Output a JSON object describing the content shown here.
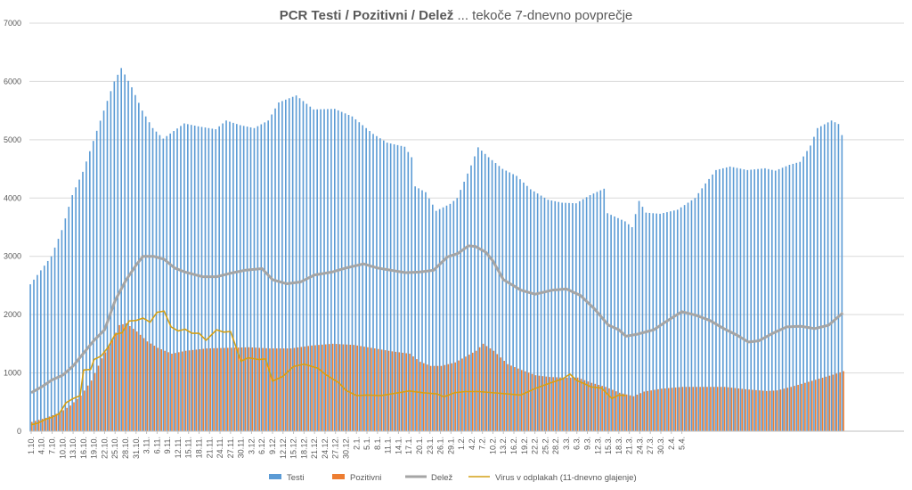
{
  "chart_data": {
    "type": "bar",
    "title_main": "PCR Testi / Pozitivni / Delež",
    "title_rest": " ... tekoče 7-dnevno povprečje",
    "ylim": [
      0,
      7000
    ],
    "yticks": [
      "0",
      "1000",
      "2000",
      "3000",
      "4000",
      "5000",
      "6000",
      "7000"
    ],
    "grid": "horizontal",
    "legend_position": "bottom",
    "xtick_labels": [
      "1.10.",
      "4.10.",
      "7.10.",
      "10.10.",
      "13.10.",
      "16.10.",
      "19.10.",
      "22.10.",
      "25.10.",
      "28.10.",
      "31.10.",
      "3.11.",
      "6.11.",
      "9.11.",
      "12.11.",
      "15.11.",
      "18.11.",
      "21.11.",
      "24.11.",
      "27.11.",
      "30.11.",
      "3.12.",
      "6.12.",
      "9.12.",
      "12.12.",
      "15.12.",
      "18.12.",
      "21.12.",
      "24.12.",
      "27.12.",
      "30.12.",
      "2.1.",
      "5.1.",
      "8.1.",
      "11.1.",
      "14.1.",
      "17.1.",
      "20.1.",
      "23.1.",
      "26.1.",
      "29.1.",
      "1.2.",
      "4.2.",
      "7.2.",
      "10.2.",
      "13.2.",
      "16.2.",
      "19.2.",
      "22.2.",
      "25.2.",
      "28.2.",
      "3.3.",
      "6.3.",
      "9.3.",
      "12.3.",
      "15.3.",
      "18.3.",
      "21.3.",
      "24.3.",
      "27.3.",
      "30.3.",
      "2.4.",
      "5.4."
    ],
    "series": [
      {
        "name": "Testi",
        "color": "#5B9BD5",
        "type": "bar",
        "keys": [
          [
            0,
            2520
          ],
          [
            6,
            3000
          ],
          [
            9,
            3450
          ],
          [
            12,
            4050
          ],
          [
            15,
            4450
          ],
          [
            18,
            4980
          ],
          [
            21,
            5500
          ],
          [
            24,
            6000
          ],
          [
            26,
            6230
          ],
          [
            29,
            5900
          ],
          [
            32,
            5500
          ],
          [
            35,
            5200
          ],
          [
            38,
            5020
          ],
          [
            41,
            5150
          ],
          [
            44,
            5280
          ],
          [
            48,
            5230
          ],
          [
            53,
            5180
          ],
          [
            56,
            5330
          ],
          [
            60,
            5250
          ],
          [
            64,
            5200
          ],
          [
            68,
            5330
          ],
          [
            71,
            5640
          ],
          [
            76,
            5760
          ],
          [
            81,
            5520
          ],
          [
            87,
            5530
          ],
          [
            92,
            5400
          ],
          [
            98,
            5100
          ],
          [
            102,
            4950
          ],
          [
            107,
            4880
          ],
          [
            109,
            4700
          ],
          [
            110,
            4200
          ],
          [
            113,
            4100
          ],
          [
            116,
            3780
          ],
          [
            120,
            3900
          ],
          [
            122,
            4000
          ],
          [
            126,
            4560
          ],
          [
            128,
            4870
          ],
          [
            131,
            4700
          ],
          [
            135,
            4500
          ],
          [
            139,
            4380
          ],
          [
            143,
            4150
          ],
          [
            148,
            3970
          ],
          [
            152,
            3920
          ],
          [
            156,
            3910
          ],
          [
            160,
            4050
          ],
          [
            164,
            4160
          ],
          [
            165,
            3740
          ],
          [
            170,
            3600
          ],
          [
            172,
            3500
          ],
          [
            174,
            3950
          ],
          [
            176,
            3750
          ],
          [
            180,
            3730
          ],
          [
            185,
            3800
          ],
          [
            190,
            4000
          ],
          [
            193,
            4250
          ],
          [
            196,
            4480
          ],
          [
            200,
            4540
          ],
          [
            205,
            4480
          ],
          [
            210,
            4510
          ],
          [
            213,
            4470
          ],
          [
            217,
            4570
          ],
          [
            220,
            4620
          ],
          [
            223,
            4900
          ],
          [
            225,
            5200
          ],
          [
            229,
            5330
          ],
          [
            231,
            5270
          ],
          [
            232,
            5080
          ]
        ]
      },
      {
        "name": "Pozitivni",
        "color": "#ED7D31",
        "type": "bar",
        "keys": [
          [
            0,
            160
          ],
          [
            4,
            230
          ],
          [
            8,
            320
          ],
          [
            11,
            440
          ],
          [
            14,
            610
          ],
          [
            17,
            870
          ],
          [
            20,
            1250
          ],
          [
            23,
            1560
          ],
          [
            25,
            1820
          ],
          [
            27,
            1850
          ],
          [
            30,
            1710
          ],
          [
            33,
            1540
          ],
          [
            36,
            1430
          ],
          [
            40,
            1330
          ],
          [
            44,
            1380
          ],
          [
            50,
            1420
          ],
          [
            56,
            1430
          ],
          [
            62,
            1440
          ],
          [
            68,
            1420
          ],
          [
            74,
            1420
          ],
          [
            80,
            1470
          ],
          [
            86,
            1500
          ],
          [
            92,
            1480
          ],
          [
            98,
            1420
          ],
          [
            103,
            1370
          ],
          [
            108,
            1330
          ],
          [
            111,
            1190
          ],
          [
            114,
            1120
          ],
          [
            117,
            1120
          ],
          [
            121,
            1180
          ],
          [
            124,
            1280
          ],
          [
            127,
            1380
          ],
          [
            129,
            1500
          ],
          [
            132,
            1380
          ],
          [
            136,
            1150
          ],
          [
            140,
            1050
          ],
          [
            144,
            960
          ],
          [
            148,
            930
          ],
          [
            152,
            920
          ],
          [
            156,
            920
          ],
          [
            160,
            830
          ],
          [
            164,
            760
          ],
          [
            168,
            660
          ],
          [
            172,
            600
          ],
          [
            175,
            680
          ],
          [
            180,
            730
          ],
          [
            186,
            760
          ],
          [
            192,
            760
          ],
          [
            198,
            760
          ],
          [
            204,
            720
          ],
          [
            210,
            690
          ],
          [
            213,
            700
          ],
          [
            217,
            760
          ],
          [
            221,
            830
          ],
          [
            225,
            900
          ],
          [
            229,
            970
          ],
          [
            232,
            1030
          ]
        ]
      },
      {
        "name": "Delež",
        "color": "#A5A5A5",
        "type": "line",
        "keys": [
          [
            0,
            660
          ],
          [
            3,
            760
          ],
          [
            6,
            880
          ],
          [
            9,
            960
          ],
          [
            12,
            1120
          ],
          [
            15,
            1340
          ],
          [
            18,
            1560
          ],
          [
            21,
            1740
          ],
          [
            24,
            2240
          ],
          [
            27,
            2580
          ],
          [
            30,
            2850
          ],
          [
            32,
            3000
          ],
          [
            35,
            3000
          ],
          [
            38,
            2950
          ],
          [
            41,
            2800
          ],
          [
            44,
            2730
          ],
          [
            49,
            2650
          ],
          [
            53,
            2650
          ],
          [
            57,
            2710
          ],
          [
            61,
            2760
          ],
          [
            66,
            2790
          ],
          [
            69,
            2600
          ],
          [
            73,
            2530
          ],
          [
            77,
            2560
          ],
          [
            81,
            2680
          ],
          [
            86,
            2730
          ],
          [
            90,
            2800
          ],
          [
            95,
            2870
          ],
          [
            99,
            2800
          ],
          [
            103,
            2760
          ],
          [
            107,
            2720
          ],
          [
            111,
            2730
          ],
          [
            115,
            2760
          ],
          [
            119,
            2990
          ],
          [
            122,
            3050
          ],
          [
            125,
            3180
          ],
          [
            127,
            3170
          ],
          [
            130,
            3070
          ],
          [
            132,
            2920
          ],
          [
            135,
            2600
          ],
          [
            140,
            2420
          ],
          [
            144,
            2350
          ],
          [
            149,
            2420
          ],
          [
            153,
            2440
          ],
          [
            157,
            2330
          ],
          [
            161,
            2100
          ],
          [
            165,
            1820
          ],
          [
            168,
            1740
          ],
          [
            170,
            1630
          ],
          [
            173,
            1660
          ],
          [
            178,
            1740
          ],
          [
            182,
            1900
          ],
          [
            186,
            2050
          ],
          [
            190,
            1990
          ],
          [
            194,
            1900
          ],
          [
            198,
            1760
          ],
          [
            202,
            1640
          ],
          [
            205,
            1530
          ],
          [
            208,
            1550
          ],
          [
            212,
            1680
          ],
          [
            216,
            1790
          ],
          [
            220,
            1800
          ],
          [
            224,
            1760
          ],
          [
            228,
            1820
          ],
          [
            232,
            2030
          ]
        ]
      },
      {
        "name": "Virus v odplakah (11-dnevno glajenje)",
        "color": "#D4A017",
        "type": "line",
        "keys": [
          [
            0,
            110
          ],
          [
            2,
            140
          ],
          [
            4,
            200
          ],
          [
            6,
            240
          ],
          [
            8,
            300
          ],
          [
            10,
            490
          ],
          [
            12,
            560
          ],
          [
            14,
            610
          ],
          [
            15,
            1050
          ],
          [
            17,
            1060
          ],
          [
            18,
            1230
          ],
          [
            20,
            1290
          ],
          [
            22,
            1440
          ],
          [
            24,
            1660
          ],
          [
            26,
            1690
          ],
          [
            28,
            1890
          ],
          [
            30,
            1900
          ],
          [
            32,
            1940
          ],
          [
            34,
            1870
          ],
          [
            36,
            2040
          ],
          [
            38,
            2060
          ],
          [
            40,
            1790
          ],
          [
            42,
            1720
          ],
          [
            44,
            1750
          ],
          [
            46,
            1680
          ],
          [
            48,
            1680
          ],
          [
            50,
            1560
          ],
          [
            53,
            1740
          ],
          [
            55,
            1700
          ],
          [
            57,
            1710
          ],
          [
            60,
            1200
          ],
          [
            62,
            1260
          ],
          [
            65,
            1230
          ],
          [
            67,
            1240
          ],
          [
            69,
            860
          ],
          [
            72,
            940
          ],
          [
            75,
            1110
          ],
          [
            78,
            1150
          ],
          [
            82,
            1080
          ],
          [
            84,
            980
          ],
          [
            88,
            830
          ],
          [
            90,
            700
          ],
          [
            93,
            610
          ],
          [
            96,
            620
          ],
          [
            100,
            610
          ],
          [
            104,
            650
          ],
          [
            108,
            690
          ],
          [
            112,
            660
          ],
          [
            116,
            640
          ],
          [
            118,
            590
          ],
          [
            121,
            660
          ],
          [
            124,
            680
          ],
          [
            128,
            680
          ],
          [
            132,
            660
          ],
          [
            136,
            640
          ],
          [
            140,
            620
          ],
          [
            144,
            730
          ],
          [
            148,
            820
          ],
          [
            152,
            900
          ],
          [
            154,
            980
          ],
          [
            156,
            870
          ],
          [
            158,
            820
          ],
          [
            160,
            760
          ],
          [
            163,
            740
          ],
          [
            166,
            560
          ],
          [
            168,
            620
          ],
          [
            170,
            610
          ]
        ]
      }
    ]
  }
}
